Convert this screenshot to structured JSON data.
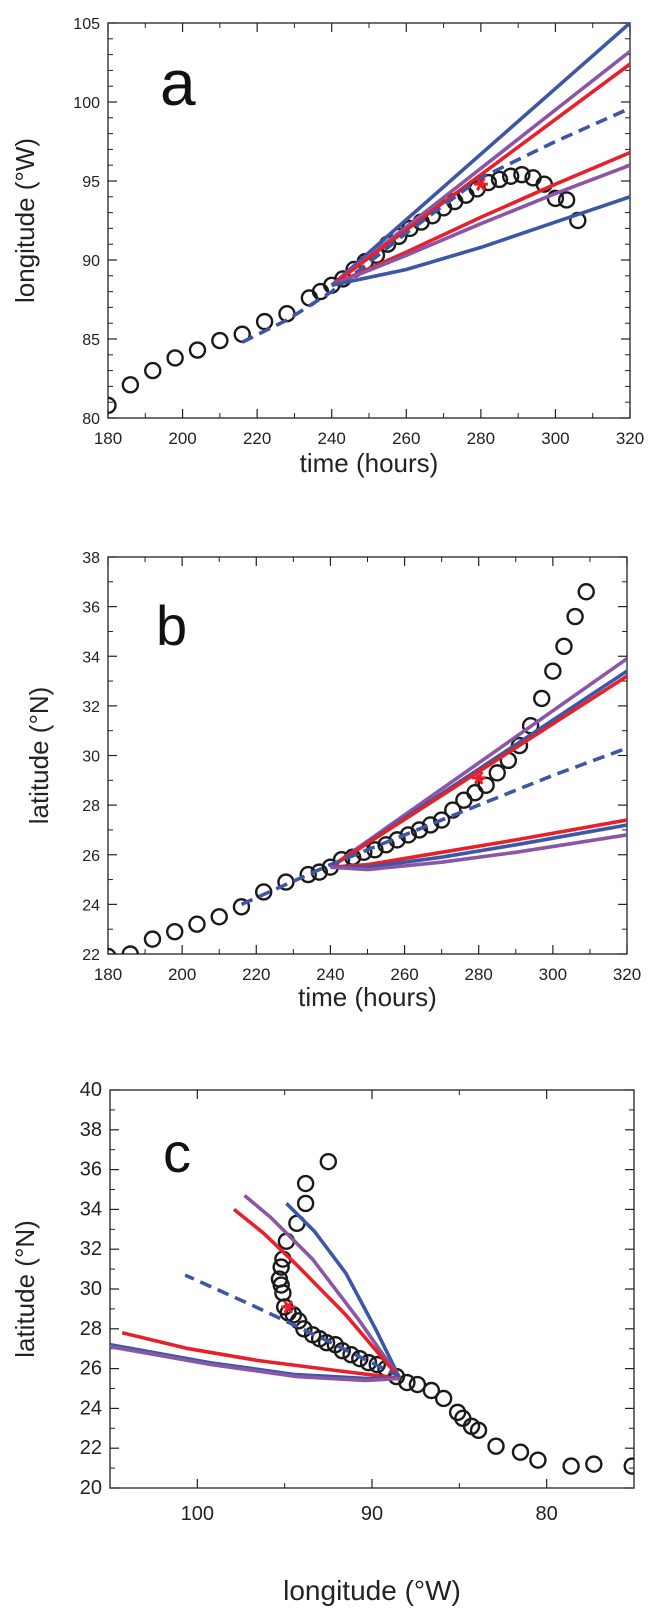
{
  "colors": {
    "blue": "#3d57a6",
    "purple": "#8b56a6",
    "red": "#e8202a",
    "observed": "#1a1a1a"
  },
  "chart_data": [
    {
      "type": "line",
      "panel_letter": "a",
      "xlabel": "time (hours)",
      "ylabel": "longitude (°W)",
      "xlim": [
        180,
        320
      ],
      "ylim": [
        80,
        105
      ],
      "xticks": [
        180,
        200,
        220,
        240,
        260,
        280,
        300,
        320
      ],
      "yticks": [
        80,
        85,
        90,
        95,
        100,
        105
      ],
      "observed": [
        [
          180,
          80.8
        ],
        [
          186,
          82.1
        ],
        [
          192,
          83.0
        ],
        [
          198,
          83.8
        ],
        [
          204,
          84.3
        ],
        [
          210,
          84.9
        ],
        [
          216,
          85.3
        ],
        [
          222,
          86.1
        ],
        [
          228,
          86.6
        ],
        [
          234,
          87.6
        ],
        [
          237,
          88.0
        ],
        [
          240,
          88.4
        ],
        [
          243,
          88.8
        ],
        [
          246,
          89.4
        ],
        [
          249,
          89.9
        ],
        [
          252,
          90.3
        ],
        [
          255,
          91.0
        ],
        [
          258,
          91.5
        ],
        [
          261,
          92.0
        ],
        [
          264,
          92.4
        ],
        [
          267,
          92.8
        ],
        [
          270,
          93.3
        ],
        [
          273,
          93.7
        ],
        [
          276,
          94.1
        ],
        [
          279,
          94.5
        ],
        [
          282,
          94.9
        ],
        [
          285,
          95.1
        ],
        [
          288,
          95.3
        ],
        [
          291,
          95.4
        ],
        [
          294,
          95.2
        ],
        [
          297,
          94.8
        ],
        [
          300,
          93.9
        ],
        [
          303,
          93.8
        ],
        [
          306,
          92.5
        ]
      ],
      "forecast_star": [
        280,
        94.8
      ],
      "series": [
        {
          "color": "blue",
          "dashed": false,
          "points": [
            [
              240,
              88.4
            ],
            [
              320,
              105.0
            ]
          ]
        },
        {
          "color": "purple",
          "dashed": false,
          "points": [
            [
              240,
              88.4
            ],
            [
              320,
              103.2
            ]
          ]
        },
        {
          "color": "red",
          "dashed": false,
          "points": [
            [
              240,
              88.4
            ],
            [
              320,
              102.4
            ]
          ]
        },
        {
          "color": "blue",
          "dashed": true,
          "points": [
            [
              216,
              84.8
            ],
            [
              228,
              86.2
            ],
            [
              240,
              88.0
            ],
            [
              260,
              91.7
            ],
            [
              280,
              95.2
            ],
            [
              300,
              97.5
            ],
            [
              320,
              99.6
            ]
          ]
        },
        {
          "color": "red",
          "dashed": false,
          "points": [
            [
              240,
              88.4
            ],
            [
              260,
              90.5
            ],
            [
              280,
              92.7
            ],
            [
              300,
              94.8
            ],
            [
              320,
              96.8
            ]
          ]
        },
        {
          "color": "purple",
          "dashed": false,
          "points": [
            [
              240,
              88.4
            ],
            [
              260,
              90.3
            ],
            [
              280,
              92.3
            ],
            [
              300,
              94.2
            ],
            [
              320,
              96.0
            ]
          ]
        },
        {
          "color": "blue",
          "dashed": false,
          "points": [
            [
              240,
              88.4
            ],
            [
              260,
              89.4
            ],
            [
              280,
              90.8
            ],
            [
              300,
              92.4
            ],
            [
              320,
              94.0
            ]
          ]
        }
      ]
    },
    {
      "type": "line",
      "panel_letter": "b",
      "xlabel": "time (hours)",
      "ylabel": "latitude (°N)",
      "xlim": [
        180,
        320
      ],
      "ylim": [
        22,
        38
      ],
      "xticks": [
        180,
        200,
        220,
        240,
        260,
        280,
        300,
        320
      ],
      "yticks": [
        22,
        24,
        26,
        28,
        30,
        32,
        34,
        36,
        38
      ],
      "observed": [
        [
          180,
          21.9
        ],
        [
          186,
          22.0
        ],
        [
          192,
          22.6
        ],
        [
          198,
          22.9
        ],
        [
          204,
          23.2
        ],
        [
          210,
          23.5
        ],
        [
          216,
          23.9
        ],
        [
          222,
          24.5
        ],
        [
          228,
          24.9
        ],
        [
          234,
          25.2
        ],
        [
          237,
          25.3
        ],
        [
          240,
          25.5
        ],
        [
          243,
          25.8
        ],
        [
          246,
          25.9
        ],
        [
          249,
          26.1
        ],
        [
          252,
          26.2
        ],
        [
          255,
          26.4
        ],
        [
          258,
          26.6
        ],
        [
          261,
          26.8
        ],
        [
          264,
          27.0
        ],
        [
          267,
          27.2
        ],
        [
          270,
          27.4
        ],
        [
          273,
          27.8
        ],
        [
          276,
          28.2
        ],
        [
          279,
          28.5
        ],
        [
          282,
          28.8
        ],
        [
          285,
          29.3
        ],
        [
          288,
          29.8
        ],
        [
          291,
          30.4
        ],
        [
          294,
          31.2
        ],
        [
          297,
          32.3
        ],
        [
          300,
          33.4
        ],
        [
          303,
          34.4
        ],
        [
          306,
          35.6
        ],
        [
          309,
          36.6
        ]
      ],
      "forecast_star": [
        280,
        29.1
      ],
      "series": [
        {
          "color": "purple",
          "dashed": false,
          "points": [
            [
              240,
              25.5
            ],
            [
              320,
              33.9
            ]
          ]
        },
        {
          "color": "blue",
          "dashed": false,
          "points": [
            [
              240,
              25.5
            ],
            [
              320,
              33.4
            ]
          ]
        },
        {
          "color": "red",
          "dashed": false,
          "points": [
            [
              240,
              25.5
            ],
            [
              320,
              33.2
            ]
          ]
        },
        {
          "color": "blue",
          "dashed": true,
          "points": [
            [
              216,
              24.0
            ],
            [
              228,
              24.8
            ],
            [
              240,
              25.6
            ],
            [
              260,
              26.8
            ],
            [
              280,
              28.0
            ],
            [
              300,
              29.2
            ],
            [
              320,
              30.3
            ]
          ]
        },
        {
          "color": "red",
          "dashed": false,
          "points": [
            [
              240,
              25.5
            ],
            [
              250,
              25.6
            ],
            [
              270,
              26.1
            ],
            [
              290,
              26.6
            ],
            [
              320,
              27.4
            ]
          ]
        },
        {
          "color": "blue",
          "dashed": false,
          "points": [
            [
              240,
              25.5
            ],
            [
              250,
              25.5
            ],
            [
              270,
              25.9
            ],
            [
              290,
              26.4
            ],
            [
              320,
              27.2
            ]
          ]
        },
        {
          "color": "purple",
          "dashed": false,
          "points": [
            [
              240,
              25.5
            ],
            [
              250,
              25.4
            ],
            [
              270,
              25.7
            ],
            [
              290,
              26.1
            ],
            [
              320,
              26.8
            ]
          ]
        }
      ]
    },
    {
      "type": "line",
      "panel_letter": "c",
      "xlabel": "longitude (°W)",
      "ylabel": "latitude (°N)",
      "xlim": [
        105,
        75
      ],
      "ylim": [
        20,
        40
      ],
      "xticks": [
        100,
        90,
        80
      ],
      "yticks": [
        20,
        22,
        24,
        26,
        28,
        30,
        32,
        34,
        36,
        38,
        40
      ],
      "observed": [
        [
          75.1,
          21.1
        ],
        [
          77.3,
          21.2
        ],
        [
          78.6,
          21.1
        ],
        [
          80.5,
          21.4
        ],
        [
          81.5,
          21.8
        ],
        [
          82.9,
          22.1
        ],
        [
          83.9,
          22.9
        ],
        [
          84.3,
          23.1
        ],
        [
          84.8,
          23.5
        ],
        [
          85.1,
          23.8
        ],
        [
          85.9,
          24.5
        ],
        [
          86.6,
          24.9
        ],
        [
          87.4,
          25.2
        ],
        [
          88.0,
          25.3
        ],
        [
          88.6,
          25.6
        ],
        [
          89.2,
          26.0
        ],
        [
          89.7,
          26.2
        ],
        [
          90.2,
          26.3
        ],
        [
          90.7,
          26.5
        ],
        [
          91.2,
          26.7
        ],
        [
          91.7,
          26.9
        ],
        [
          92.1,
          27.2
        ],
        [
          92.6,
          27.3
        ],
        [
          93.0,
          27.5
        ],
        [
          93.4,
          27.7
        ],
        [
          93.9,
          28.0
        ],
        [
          94.2,
          28.4
        ],
        [
          94.5,
          28.7
        ],
        [
          94.8,
          28.8
        ],
        [
          95.0,
          29.1
        ],
        [
          95.1,
          29.8
        ],
        [
          95.2,
          30.2
        ],
        [
          95.3,
          30.5
        ],
        [
          95.2,
          31.1
        ],
        [
          95.1,
          31.5
        ],
        [
          94.9,
          32.4
        ],
        [
          94.3,
          33.3
        ],
        [
          93.8,
          34.3
        ],
        [
          93.8,
          35.3
        ],
        [
          92.5,
          36.4
        ]
      ],
      "forecast_star": [
        94.8,
        29.1
      ],
      "series": [
        {
          "color": "blue",
          "dashed": false,
          "points": [
            [
              88.4,
              25.5
            ],
            [
              89.8,
              28.0
            ],
            [
              91.5,
              30.8
            ],
            [
              93.3,
              32.9
            ],
            [
              94.9,
              34.3
            ]
          ]
        },
        {
          "color": "purple",
          "dashed": false,
          "points": [
            [
              88.4,
              25.5
            ],
            [
              90.8,
              28.5
            ],
            [
              93.4,
              31.5
            ],
            [
              95.8,
              33.6
            ],
            [
              97.3,
              34.7
            ]
          ]
        },
        {
          "color": "red",
          "dashed": false,
          "points": [
            [
              88.4,
              25.5
            ],
            [
              91.5,
              28.7
            ],
            [
              94.3,
              31.2
            ],
            [
              96.2,
              32.8
            ],
            [
              97.9,
              34.0
            ]
          ]
        },
        {
          "color": "blue",
          "dashed": true,
          "points": [
            [
              88.4,
              25.6
            ],
            [
              92.8,
              27.5
            ],
            [
              96.9,
              29.2
            ],
            [
              100.7,
              30.7
            ]
          ]
        },
        {
          "color": "red",
          "dashed": false,
          "points": [
            [
              88.4,
              25.5
            ],
            [
              92.0,
              25.9
            ],
            [
              96.5,
              26.4
            ],
            [
              100.5,
              27.0
            ],
            [
              104.3,
              27.8
            ]
          ]
        },
        {
          "color": "blue",
          "dashed": false,
          "points": [
            [
              88.4,
              25.5
            ],
            [
              90.2,
              25.5
            ],
            [
              94.4,
              25.7
            ],
            [
              99.3,
              26.3
            ],
            [
              105.0,
              27.2
            ]
          ]
        },
        {
          "color": "purple",
          "dashed": false,
          "points": [
            [
              88.4,
              25.5
            ],
            [
              90.4,
              25.4
            ],
            [
              94.3,
              25.6
            ],
            [
              99.2,
              26.2
            ],
            [
              105.0,
              27.1
            ]
          ]
        }
      ]
    }
  ]
}
